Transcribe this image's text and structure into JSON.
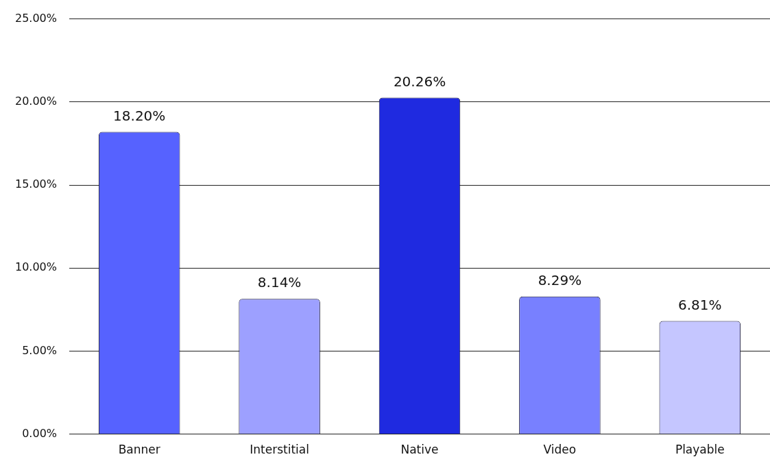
{
  "chart_data": {
    "type": "bar",
    "categories": [
      "Banner",
      "Interstitial",
      "Native",
      "Video",
      "Playable"
    ],
    "values": [
      18.2,
      8.14,
      20.26,
      8.29,
      6.81
    ],
    "colors": [
      "#5662ff",
      "#9da0ff",
      "#1f2ae0",
      "#7880ff",
      "#c5c6ff"
    ],
    "value_labels": [
      "18.20%",
      "8.14%",
      "20.26%",
      "8.29%",
      "6.81%"
    ],
    "ylim": [
      0,
      25
    ],
    "yticks": [
      {
        "value": 0,
        "label": "0.00%"
      },
      {
        "value": 5,
        "label": "5.00%"
      },
      {
        "value": 10,
        "label": "10.00%"
      },
      {
        "value": 15,
        "label": "15.00%"
      },
      {
        "value": 20,
        "label": "20.00%"
      },
      {
        "value": 25,
        "label": "25.00%"
      }
    ],
    "grid": "y",
    "legend": false
  }
}
